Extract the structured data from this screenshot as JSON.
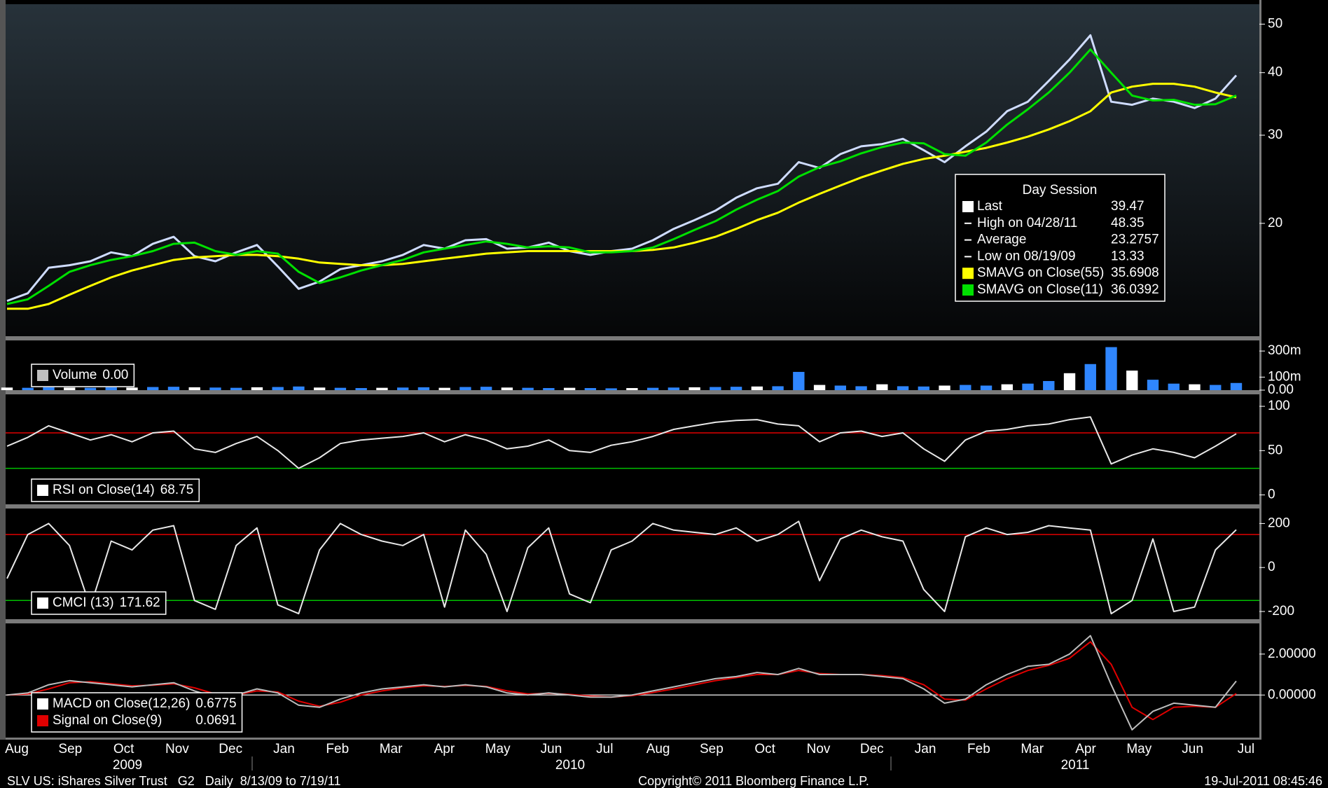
{
  "chart_data": [
    {
      "type": "line",
      "log_scale": true,
      "ylim": [
        11.9,
        54.8
      ],
      "yticks": [
        20,
        30,
        40,
        50
      ],
      "series": [
        {
          "name": "Price",
          "color": "#cfdcff",
          "values": [
            14.0,
            14.5,
            16.3,
            16.5,
            16.8,
            17.5,
            17.2,
            18.2,
            18.8,
            17.2,
            16.8,
            17.5,
            18.1,
            16.4,
            14.8,
            15.3,
            16.2,
            16.5,
            16.8,
            17.3,
            18.1,
            17.8,
            18.5,
            18.6,
            17.8,
            17.9,
            18.3,
            17.6,
            17.3,
            17.6,
            17.8,
            18.5,
            19.5,
            20.3,
            21.2,
            22.5,
            23.5,
            24.0,
            26.5,
            25.8,
            27.5,
            28.5,
            28.8,
            29.5,
            28.0,
            26.5,
            28.5,
            30.5,
            33.5,
            35.0,
            38.5,
            42.5,
            47.5,
            35.0,
            34.5,
            35.5,
            35.0,
            34.0,
            35.5,
            39.5
          ]
        },
        {
          "name": "SMAVG on Close(55)",
          "color": "#ffff00",
          "values": [
            13.5,
            13.5,
            13.8,
            14.4,
            15.0,
            15.6,
            16.1,
            16.5,
            16.9,
            17.1,
            17.2,
            17.3,
            17.3,
            17.2,
            17.0,
            16.7,
            16.6,
            16.5,
            16.5,
            16.6,
            16.8,
            17.0,
            17.2,
            17.4,
            17.5,
            17.6,
            17.6,
            17.6,
            17.6,
            17.6,
            17.6,
            17.7,
            17.9,
            18.3,
            18.8,
            19.5,
            20.3,
            21.0,
            22.0,
            22.9,
            23.8,
            24.7,
            25.5,
            26.3,
            26.9,
            27.3,
            27.8,
            28.3,
            29.0,
            29.8,
            30.8,
            32.0,
            33.5,
            36.5,
            37.5,
            38.0,
            38.0,
            37.5,
            36.5,
            35.7
          ]
        },
        {
          "name": "SMAVG on Close(11)",
          "color": "#00e000",
          "values": [
            13.8,
            14.1,
            15.0,
            16.0,
            16.5,
            16.9,
            17.2,
            17.6,
            18.2,
            18.3,
            17.6,
            17.3,
            17.6,
            17.4,
            16.0,
            15.2,
            15.6,
            16.1,
            16.5,
            16.9,
            17.5,
            17.8,
            18.1,
            18.4,
            18.2,
            17.9,
            18.0,
            17.9,
            17.5,
            17.5,
            17.6,
            17.9,
            18.6,
            19.4,
            20.2,
            21.3,
            22.3,
            23.2,
            24.8,
            25.9,
            26.6,
            27.6,
            28.4,
            29.0,
            28.9,
            27.5,
            27.3,
            29.0,
            31.5,
            33.8,
            36.5,
            40.0,
            44.5,
            40.0,
            36.0,
            35.2,
            35.3,
            34.5,
            34.6,
            36.0
          ]
        }
      ],
      "legend_box": {
        "title": "Day Session",
        "rows": [
          {
            "label": "Last",
            "value": 39.47,
            "color": "#ffffff"
          },
          {
            "label": "High on 04/28/11",
            "value": 48.35
          },
          {
            "label": "Average",
            "value": 23.2757
          },
          {
            "label": "Low on 08/19/09",
            "value": 13.33
          },
          {
            "label": "SMAVG on Close(55)",
            "value": 35.6908,
            "color": "#ffff00"
          },
          {
            "label": "SMAVG on Close(11)",
            "value": 36.0392,
            "color": "#00e000"
          }
        ]
      }
    },
    {
      "type": "bar",
      "ylim": [
        0,
        376000000
      ],
      "yticks": [
        {
          "value": 0,
          "label": "0.00"
        },
        {
          "value": 100000000,
          "label": "100m"
        },
        {
          "value": 300000000,
          "label": "300m"
        }
      ],
      "series": [
        {
          "name": "Volume",
          "color": "#2f86ff",
          "values": [
            20000000,
            18000000,
            22000000,
            20000000,
            18000000,
            22000000,
            20000000,
            24000000,
            26000000,
            22000000,
            20000000,
            18000000,
            22000000,
            24000000,
            28000000,
            20000000,
            18000000,
            16000000,
            18000000,
            20000000,
            22000000,
            18000000,
            24000000,
            26000000,
            20000000,
            18000000,
            16000000,
            18000000,
            16000000,
            14000000,
            16000000,
            18000000,
            20000000,
            22000000,
            24000000,
            26000000,
            28000000,
            30000000,
            140000000,
            40000000,
            35000000,
            30000000,
            45000000,
            30000000,
            28000000,
            35000000,
            40000000,
            35000000,
            45000000,
            50000000,
            70000000,
            130000000,
            200000000,
            330000000,
            150000000,
            80000000,
            50000000,
            45000000,
            40000000,
            55000000
          ]
        }
      ],
      "legend": [
        {
          "name": "Volume",
          "value": 0,
          "value_label": "0.00",
          "color": "#c0c0c0"
        }
      ]
    },
    {
      "type": "line",
      "ylim": [
        -10.6,
        113.5
      ],
      "yticks": [
        0,
        50,
        100
      ],
      "ref_lines": [
        {
          "value": 70,
          "color": "#e00000"
        },
        {
          "value": 30,
          "color": "#00c000"
        }
      ],
      "series": [
        {
          "name": "RSI on Close(14)",
          "color": "#e8e8e8",
          "values": [
            55,
            65,
            78,
            70,
            62,
            68,
            60,
            70,
            72,
            52,
            48,
            58,
            66,
            50,
            30,
            42,
            58,
            62,
            64,
            66,
            70,
            60,
            68,
            62,
            52,
            55,
            62,
            50,
            48,
            56,
            60,
            66,
            74,
            78,
            82,
            84,
            85,
            80,
            78,
            60,
            70,
            72,
            66,
            70,
            52,
            38,
            62,
            72,
            74,
            78,
            80,
            85,
            88,
            35,
            45,
            52,
            48,
            42,
            55,
            69
          ]
        }
      ],
      "legend": [
        {
          "name": "RSI on Close(14)",
          "value": 68.75,
          "color": "#ffffff"
        }
      ]
    },
    {
      "type": "line",
      "ylim": [
        -235,
        265
      ],
      "yticks": [
        -200,
        0,
        200
      ],
      "ref_lines": [
        {
          "value": 150,
          "color": "#e00000"
        },
        {
          "value": -150,
          "color": "#00c000"
        }
      ],
      "series": [
        {
          "name": "CMCI (13)",
          "color": "#e8e8e8",
          "values": [
            -50,
            150,
            200,
            100,
            -180,
            120,
            80,
            170,
            190,
            -150,
            -190,
            100,
            180,
            -170,
            -210,
            80,
            200,
            150,
            120,
            100,
            150,
            -180,
            170,
            60,
            -200,
            90,
            180,
            -120,
            -160,
            80,
            120,
            200,
            170,
            160,
            150,
            180,
            120,
            150,
            210,
            -60,
            130,
            170,
            140,
            120,
            -100,
            -200,
            140,
            180,
            150,
            160,
            190,
            180,
            170,
            -210,
            -150,
            130,
            -200,
            -180,
            80,
            171.62
          ]
        }
      ],
      "legend": [
        {
          "name": "CMCI (13)",
          "value": 171.62,
          "color": "#ffffff"
        }
      ]
    },
    {
      "type": "line",
      "ylim": [
        -2.08,
        3.5
      ],
      "yticks": [
        {
          "value": 0,
          "label": "0.00000"
        },
        {
          "value": 2,
          "label": "2.00000"
        }
      ],
      "ref_lines": [
        {
          "value": 0,
          "color": "#d0d0d0"
        }
      ],
      "series": [
        {
          "name": "Signal on Close(9)",
          "color": "#e00000",
          "values": [
            0,
            0.05,
            0.3,
            0.6,
            0.65,
            0.55,
            0.45,
            0.48,
            0.55,
            0.35,
            0.05,
            0.0,
            0.2,
            0.15,
            -0.3,
            -0.55,
            -0.35,
            0.0,
            0.2,
            0.35,
            0.45,
            0.42,
            0.47,
            0.42,
            0.2,
            0.05,
            0.08,
            0.03,
            -0.05,
            -0.1,
            -0.03,
            0.12,
            0.3,
            0.5,
            0.7,
            0.85,
            1.0,
            1.0,
            1.2,
            1.05,
            1.0,
            1.0,
            0.95,
            0.85,
            0.5,
            -0.2,
            -0.25,
            0.3,
            0.8,
            1.2,
            1.45,
            1.8,
            2.6,
            1.5,
            -0.6,
            -1.2,
            -0.6,
            -0.55,
            -0.6,
            0.0691
          ]
        },
        {
          "name": "MACD on Close(12,26)",
          "color": "#bdbdbd",
          "values": [
            0,
            0.1,
            0.5,
            0.7,
            0.6,
            0.5,
            0.4,
            0.5,
            0.6,
            0.2,
            -0.1,
            0.0,
            0.3,
            0.1,
            -0.5,
            -0.6,
            -0.2,
            0.1,
            0.3,
            0.4,
            0.5,
            0.4,
            0.5,
            0.4,
            0.1,
            0.0,
            0.1,
            0.0,
            -0.1,
            -0.1,
            0.0,
            0.2,
            0.4,
            0.6,
            0.8,
            0.9,
            1.1,
            1.0,
            1.3,
            1.0,
            1.0,
            1.0,
            0.9,
            0.8,
            0.3,
            -0.4,
            -0.2,
            0.5,
            1.0,
            1.4,
            1.5,
            2.0,
            2.9,
            0.5,
            -1.7,
            -0.8,
            -0.4,
            -0.5,
            -0.6,
            0.6775
          ]
        }
      ],
      "legend": [
        {
          "name": "MACD on Close(12,26)",
          "value": 0.6775,
          "color": "#ffffff"
        },
        {
          "name": "Signal on Close(9)",
          "value": 0.0691,
          "color": "#e00000"
        }
      ]
    }
  ],
  "x_axis": {
    "categories": [
      "Aug",
      "Sep",
      "Oct",
      "Nov",
      "Dec",
      "Jan",
      "Feb",
      "Mar",
      "Apr",
      "May",
      "Jun",
      "Jul",
      "Aug",
      "Sep",
      "Oct",
      "Nov",
      "Dec",
      "Jan",
      "Feb",
      "Mar",
      "Apr",
      "May",
      "Jun",
      "Jul"
    ],
    "years": [
      "2009",
      "2010",
      "2011"
    ]
  },
  "footer": {
    "security": "SLV US: iShares Silver Trust   G2   Daily  8/13/09 to 7/19/11",
    "copyright": "Copyright© 2011 Bloomberg Finance L.P.",
    "timestamp": "19-Jul-2011 08:45:46"
  }
}
